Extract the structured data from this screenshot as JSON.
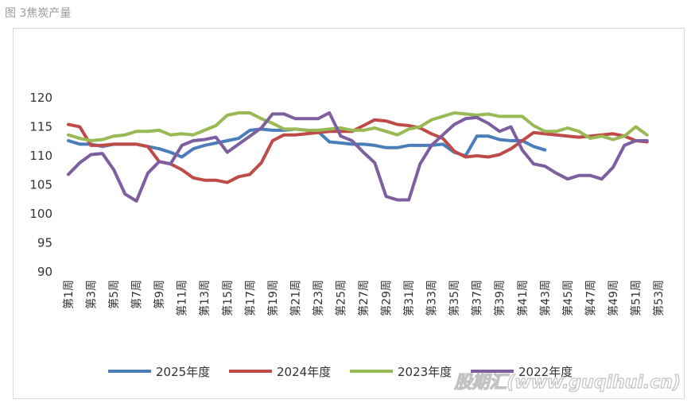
{
  "figure_label": "图 3焦炭产量",
  "watermark": "股期汇(www.guqihui.cn)",
  "chart_data": {
    "type": "line",
    "title": "",
    "xlabel": "",
    "ylabel": "",
    "ylim": [
      90,
      120
    ],
    "yticks": [
      90,
      95,
      100,
      105,
      110,
      115,
      120
    ],
    "grid": false,
    "legend_position": "bottom",
    "x": [
      "第1周",
      "第2周",
      "第3周",
      "第4周",
      "第5周",
      "第6周",
      "第7周",
      "第8周",
      "第9周",
      "第10周",
      "第11周",
      "第12周",
      "第13周",
      "第14周",
      "第15周",
      "第16周",
      "第17周",
      "第18周",
      "第19周",
      "第20周",
      "第21周",
      "第22周",
      "第23周",
      "第24周",
      "第25周",
      "第26周",
      "第27周",
      "第28周",
      "第29周",
      "第30周",
      "第31周",
      "第32周",
      "第33周",
      "第34周",
      "第35周",
      "第36周",
      "第37周",
      "第38周",
      "第39周",
      "第40周",
      "第41周",
      "第42周",
      "第43周",
      "第44周",
      "第45周",
      "第46周",
      "第47周",
      "第48周",
      "第49周",
      "第50周",
      "第51周",
      "第52周",
      "第53周"
    ],
    "xtick_labels": [
      "第1周",
      "第3周",
      "第5周",
      "第7周",
      "第9周",
      "第11周",
      "第13周",
      "第15周",
      "第17周",
      "第19周",
      "第21周",
      "第23周",
      "第25周",
      "第27周",
      "第29周",
      "第31周",
      "第33周",
      "第35周",
      "第37周",
      "第39周",
      "第41周",
      "第43周",
      "第45周",
      "第47周",
      "第49周",
      "第51周",
      "第53周"
    ],
    "series": [
      {
        "name": "2025年度",
        "color": "#4a7ebb",
        "values": [
          112.6,
          112.0,
          112.0,
          111.6,
          112.0,
          112.0,
          112.0,
          111.6,
          111.2,
          110.6,
          109.8,
          111.2,
          111.8,
          112.2,
          112.6,
          113.0,
          114.4,
          114.6,
          114.4,
          114.4,
          114.6,
          114.4,
          114.2,
          112.4,
          112.2,
          112.0,
          112.0,
          111.8,
          111.4,
          111.4,
          111.8,
          111.8,
          111.8,
          112.0,
          110.6,
          110.0,
          113.4,
          113.4,
          112.8,
          112.6,
          112.6,
          111.6,
          111.0,
          null,
          null,
          null,
          null,
          null,
          null,
          null,
          null,
          null,
          null
        ]
      },
      {
        "name": "2024年度",
        "color": "#be4b48",
        "values": [
          115.4,
          115.0,
          111.8,
          111.8,
          112.0,
          112.0,
          112.0,
          111.6,
          109.0,
          108.6,
          107.6,
          106.2,
          105.8,
          105.8,
          105.4,
          106.4,
          106.8,
          108.8,
          112.6,
          113.6,
          113.6,
          113.8,
          114.0,
          114.2,
          114.2,
          114.2,
          115.2,
          116.2,
          116.0,
          115.4,
          115.2,
          114.8,
          113.8,
          113.0,
          110.8,
          109.8,
          110.0,
          109.8,
          110.2,
          111.2,
          112.6,
          114.0,
          113.8,
          113.6,
          113.4,
          113.2,
          113.4,
          113.6,
          113.8,
          113.4,
          112.6,
          112.4,
          null
        ]
      },
      {
        "name": "2023年度",
        "color": "#98b954",
        "values": [
          113.6,
          113.0,
          112.6,
          112.8,
          113.4,
          113.6,
          114.2,
          114.2,
          114.4,
          113.6,
          113.8,
          113.6,
          114.4,
          115.2,
          117.0,
          117.4,
          117.4,
          116.4,
          115.6,
          114.6,
          114.6,
          114.4,
          114.4,
          114.6,
          114.8,
          114.4,
          114.4,
          114.8,
          114.2,
          113.6,
          114.6,
          115.0,
          116.2,
          116.8,
          117.4,
          117.2,
          117.0,
          117.2,
          116.8,
          116.8,
          116.8,
          115.2,
          114.2,
          114.2,
          114.8,
          114.2,
          113.0,
          113.4,
          112.8,
          113.4,
          115.0,
          113.6,
          null
        ]
      },
      {
        "name": "2022年度",
        "color": "#7d5fa0",
        "values": [
          106.8,
          108.8,
          110.2,
          110.4,
          107.6,
          103.4,
          102.2,
          107.0,
          109.0,
          108.6,
          111.8,
          112.6,
          112.8,
          113.2,
          110.6,
          112.0,
          113.4,
          114.8,
          117.2,
          117.2,
          116.4,
          116.4,
          116.4,
          117.4,
          113.4,
          112.6,
          110.6,
          108.8,
          103.0,
          102.4,
          102.4,
          108.6,
          111.8,
          113.6,
          115.4,
          116.4,
          116.6,
          115.6,
          114.2,
          115.0,
          111.0,
          108.6,
          108.2,
          107.0,
          106.0,
          106.6,
          106.6,
          106.0,
          108.0,
          111.8,
          112.6,
          112.6,
          null
        ]
      }
    ]
  }
}
